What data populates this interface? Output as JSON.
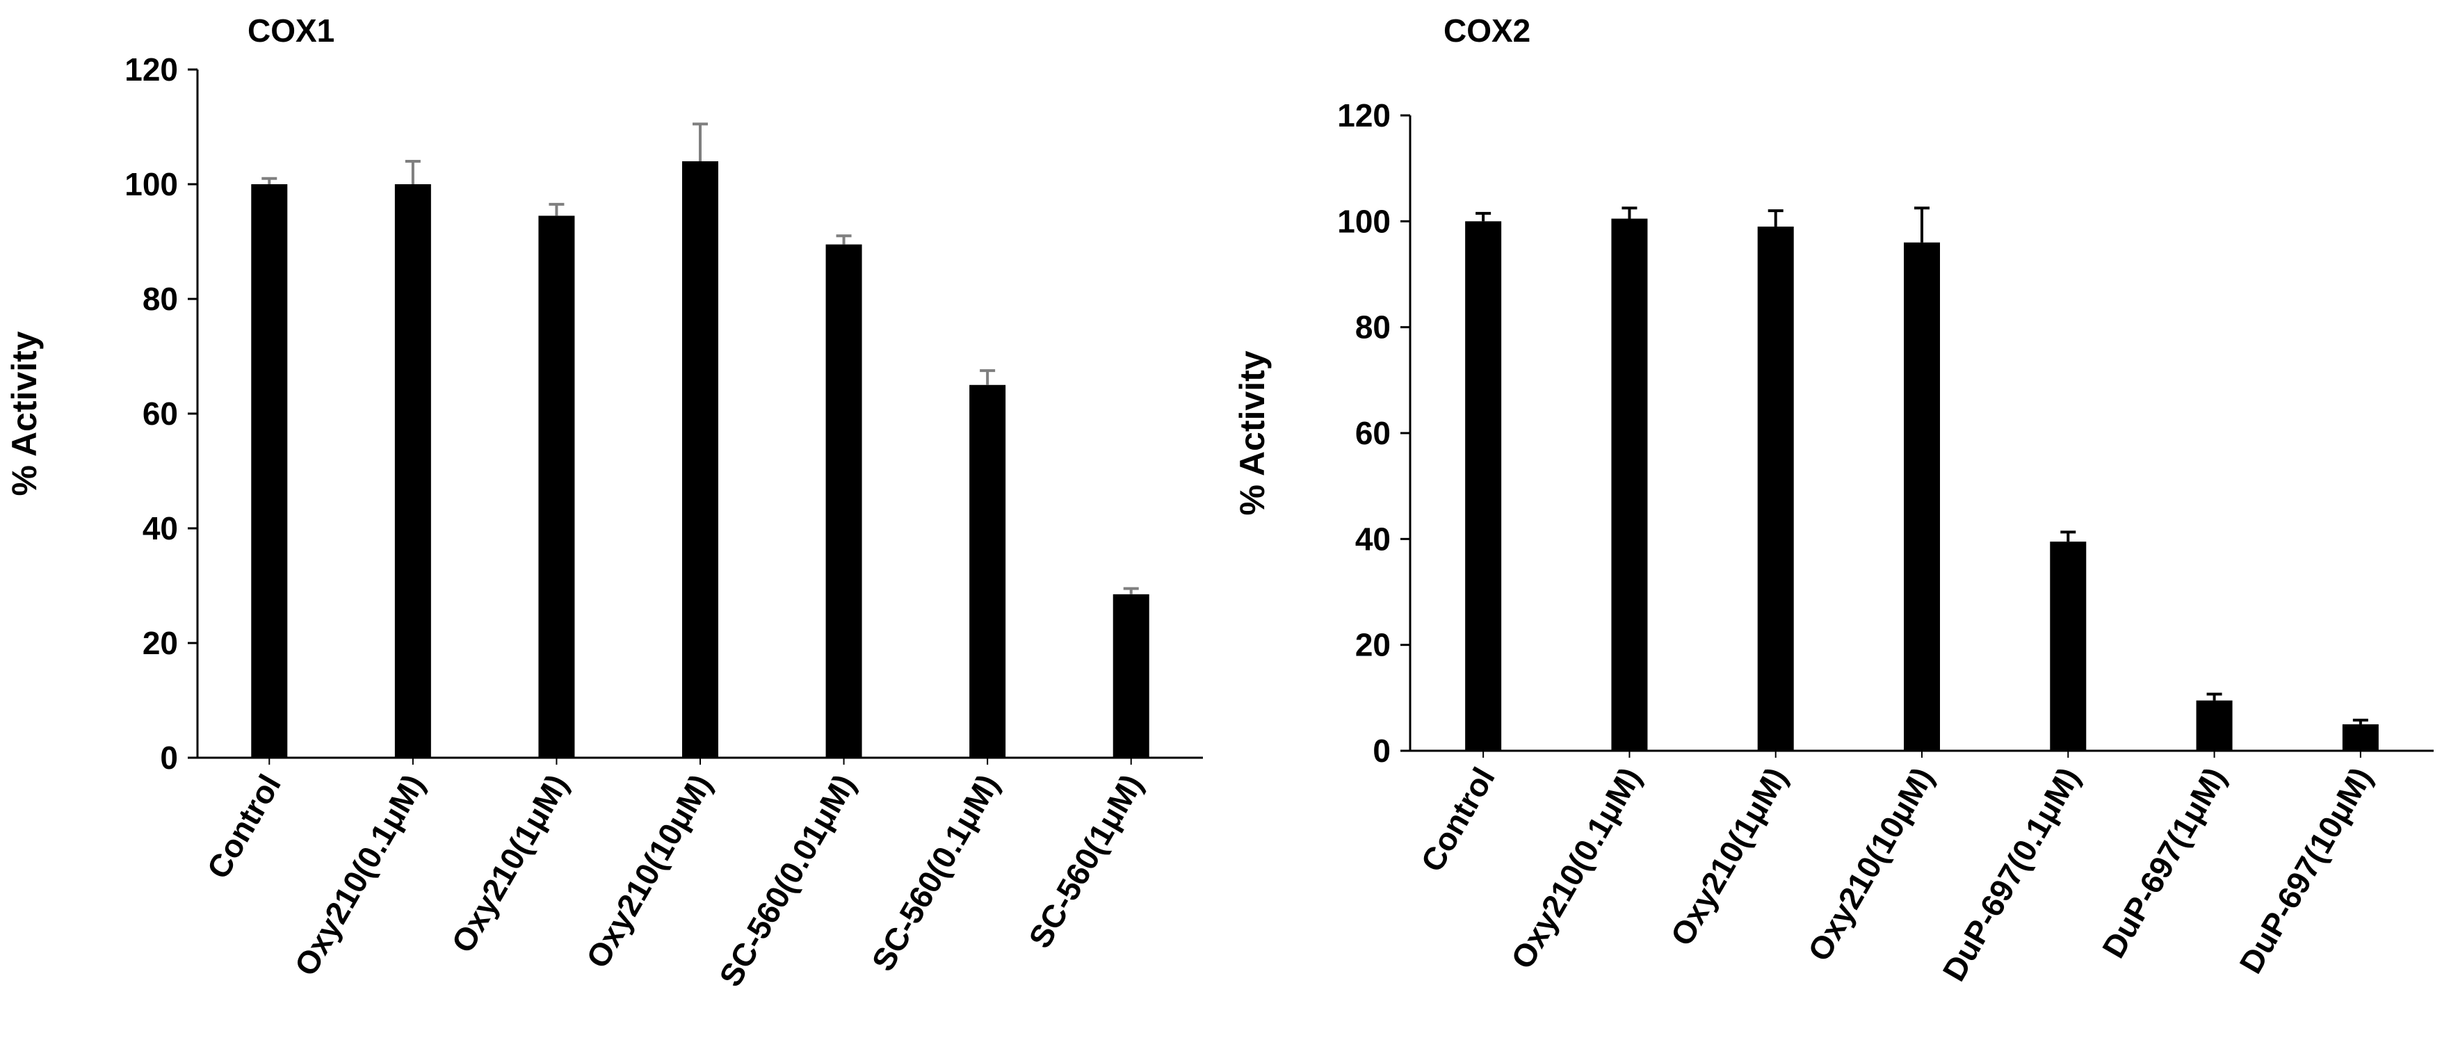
{
  "chart_data": [
    {
      "type": "bar",
      "title": "COX1",
      "xlabel": "",
      "ylabel": "% Activity",
      "ylim": [
        0,
        120
      ],
      "yticks": [
        "0",
        "20",
        "40",
        "60",
        "80",
        "100",
        "120"
      ],
      "categories": [
        "Control",
        "Oxy210(0.1μM)",
        "Oxy210(1μM)",
        "Oxy210(10μM)",
        "SC-560(0.01μM)",
        "SC-560(0.1μM)",
        "SC-560(1μM)"
      ],
      "values": [
        100,
        100,
        94.5,
        104,
        89.5,
        65,
        28.5
      ],
      "errors": [
        1,
        4,
        2,
        6.5,
        1.5,
        2.5,
        1
      ],
      "bar_color": "#000000",
      "error_color": "#7f7f7f",
      "grid": false,
      "legend": "none"
    },
    {
      "type": "bar",
      "title": "COX2",
      "xlabel": "",
      "ylabel": "% Activity",
      "ylim": [
        0,
        120
      ],
      "yticks": [
        "0",
        "20",
        "40",
        "60",
        "80",
        "100",
        "120"
      ],
      "categories": [
        "Control",
        "Oxy210(0.1μM)",
        "Oxy210(1μM)",
        "Oxy210(10μM)",
        "DuP-697(0.1μM)",
        "DuP-697(1μM)",
        "DuP-697(10μM)"
      ],
      "values": [
        100,
        100.5,
        99,
        96,
        39.5,
        9.5,
        5
      ],
      "errors": [
        1.5,
        2,
        3,
        6.5,
        1.8,
        1.2,
        0.8
      ],
      "bar_color": "#000000",
      "error_color": "#000000",
      "grid": false,
      "legend": "none"
    }
  ]
}
